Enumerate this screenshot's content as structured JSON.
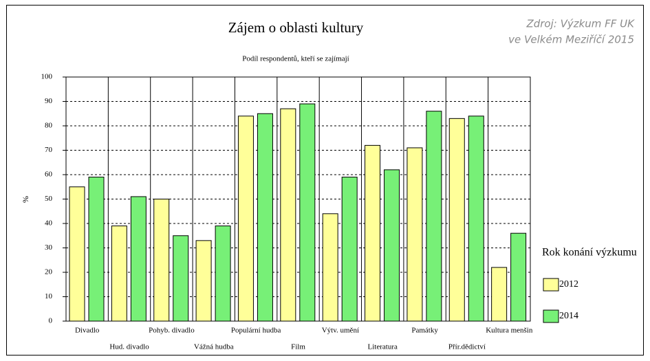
{
  "chart_data": {
    "type": "bar",
    "title": "Zájem o oblasti kultury",
    "subtitle": "Podíl respondentů, kteří se zajímají",
    "source": [
      "Zdroj: Výzkum FF UK",
      "ve Velkém Meziříčí 2015"
    ],
    "y_label": "%",
    "legend_title": "Rok konání výzkumu",
    "categories": [
      "Divadlo",
      "Hud. divadlo",
      "Pohyb. divadlo",
      "Vážná hudba",
      "Populární hudba",
      "Film",
      "Výtv. umění",
      "Literatura",
      "Památky",
      "Přír.dědictví",
      "Kultura menšin"
    ],
    "series": [
      {
        "name": "2012",
        "color": "#ffff99",
        "values": [
          55,
          39,
          50,
          33,
          84,
          87,
          44,
          72,
          71,
          83,
          22
        ]
      },
      {
        "name": "2014",
        "color": "#77f077",
        "values": [
          59,
          51,
          35,
          39,
          85,
          89,
          59,
          62,
          86,
          84,
          36
        ]
      }
    ],
    "ylim": [
      0,
      100
    ],
    "yticks": [
      0,
      10,
      20,
      30,
      40,
      50,
      60,
      70,
      80,
      90,
      100
    ],
    "grid": true
  }
}
